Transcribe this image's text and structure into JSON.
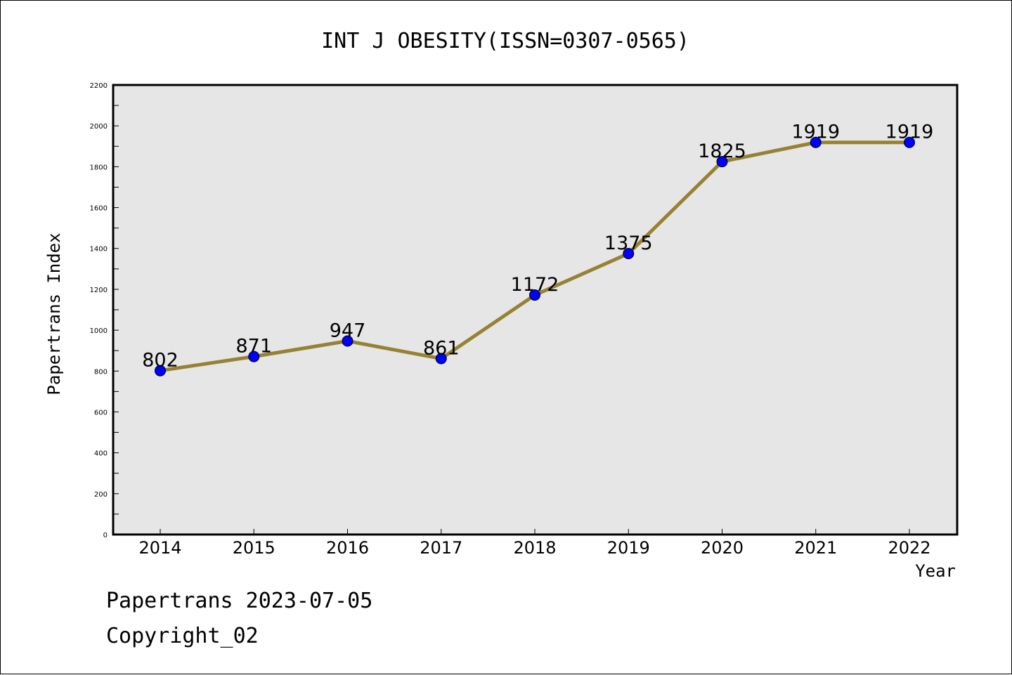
{
  "footer": {
    "line1": "Papertrans 2023-07-05",
    "line2": "Copyright_02"
  },
  "chart_data": {
    "type": "line",
    "title": "INT J OBESITY(ISSN=0307-0565)",
    "xlabel": "Year",
    "ylabel": "Papertrans Index",
    "categories": [
      "2014",
      "2015",
      "2016",
      "2017",
      "2018",
      "2019",
      "2020",
      "2021",
      "2022"
    ],
    "series": [
      {
        "values": [
          802,
          871,
          947,
          861,
          1172,
          1375,
          1825,
          1919,
          1919
        ]
      }
    ],
    "data_labels": [
      "802",
      "871",
      "947",
      "861",
      "1172",
      "1375",
      "1825",
      "1919",
      "1919"
    ],
    "ylim": [
      0,
      2200
    ],
    "y_ticks": [
      "0",
      "200",
      "400",
      "600",
      "800",
      "1000",
      "1200",
      "1400",
      "1600",
      "1800",
      "2000",
      "2200"
    ],
    "grid": false,
    "legend": "none",
    "colors": {
      "plot_background": "#e6e6e6",
      "line": "#968232",
      "marker": "#0000ff"
    }
  }
}
